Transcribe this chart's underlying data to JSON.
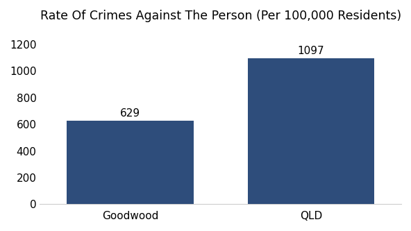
{
  "categories": [
    "Goodwood",
    "QLD"
  ],
  "values": [
    629,
    1097
  ],
  "bar_color": "#2e4d7b",
  "title": "Rate Of Crimes Against The Person (Per 100,000 Residents)",
  "title_fontsize": 12.5,
  "ylim": [
    0,
    1300
  ],
  "yticks": [
    0,
    200,
    400,
    600,
    800,
    1000,
    1200
  ],
  "bar_width": 0.35,
  "label_fontsize": 11,
  "tick_fontsize": 11,
  "background_color": "#ffffff",
  "value_labels": [
    "629",
    "1097"
  ],
  "bar_positions": [
    0.25,
    0.75
  ]
}
